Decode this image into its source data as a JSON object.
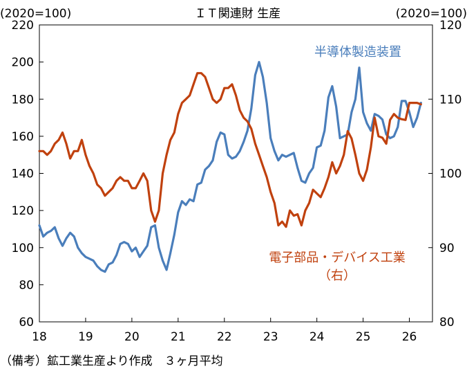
{
  "chart_data": {
    "type": "line",
    "title": "ＩＴ関連財 生産",
    "left_unit": "(2020=100)",
    "right_unit": "(2020=100)",
    "note": "（備考）鉱工業生産より作成　３ヶ月平均",
    "x_axis": {
      "range": [
        18.0,
        26.5
      ],
      "ticks": [
        18,
        19,
        20,
        21,
        22,
        23,
        24,
        25,
        26
      ],
      "tick_labels": [
        "18",
        "19",
        "20",
        "21",
        "22",
        "23",
        "24",
        "25",
        "26"
      ]
    },
    "y_left": {
      "range": [
        60,
        220
      ],
      "ticks": [
        60,
        80,
        100,
        120,
        140,
        160,
        180,
        200,
        220
      ],
      "tick_labels": [
        "60",
        "80",
        "100",
        "120",
        "140",
        "160",
        "180",
        "200",
        "220"
      ]
    },
    "y_right": {
      "range": [
        80,
        120
      ],
      "ticks": [
        80,
        90,
        100,
        110,
        120
      ],
      "tick_labels": [
        "80",
        "90",
        "100",
        "110",
        "120"
      ]
    },
    "grid": false,
    "series": [
      {
        "name": "半導体製造装置",
        "axis": "left",
        "color": "#4a7ebb",
        "x": [
          18.0,
          18.083,
          18.167,
          18.25,
          18.333,
          18.417,
          18.5,
          18.583,
          18.667,
          18.75,
          18.833,
          18.917,
          19.0,
          19.083,
          19.167,
          19.25,
          19.333,
          19.417,
          19.5,
          19.583,
          19.667,
          19.75,
          19.833,
          19.917,
          20.0,
          20.083,
          20.167,
          20.25,
          20.333,
          20.417,
          20.5,
          20.583,
          20.667,
          20.75,
          20.833,
          20.917,
          21.0,
          21.083,
          21.167,
          21.25,
          21.333,
          21.417,
          21.5,
          21.583,
          21.667,
          21.75,
          21.833,
          21.917,
          22.0,
          22.083,
          22.167,
          22.25,
          22.333,
          22.417,
          22.5,
          22.583,
          22.667,
          22.75,
          22.833,
          22.917,
          23.0,
          23.083,
          23.167,
          23.25,
          23.333,
          23.417,
          23.5,
          23.583,
          23.667,
          23.75,
          23.833,
          23.917,
          24.0,
          24.083,
          24.167,
          24.25,
          24.333,
          24.417,
          24.5,
          24.583,
          24.667,
          24.75,
          24.833,
          24.917,
          25.0,
          25.083,
          25.167,
          25.25,
          25.333,
          25.417,
          25.5,
          25.583,
          25.667,
          25.75,
          25.833,
          25.917,
          26.0,
          26.083,
          26.167,
          26.25
        ],
        "values": [
          112,
          106,
          108,
          109,
          111,
          105,
          101,
          105,
          108,
          106,
          100,
          97,
          95,
          94,
          93,
          90,
          88,
          87,
          91,
          92,
          96,
          102,
          103,
          102,
          98,
          100,
          95,
          98,
          101,
          111,
          112,
          100,
          93,
          88,
          97,
          107,
          119,
          125,
          123,
          126,
          125,
          134,
          135,
          142,
          144,
          147,
          157,
          162,
          161,
          150,
          148,
          149,
          152,
          157,
          163,
          175,
          193,
          200,
          192,
          178,
          159,
          152,
          147,
          150,
          149,
          150,
          151,
          143,
          136,
          135,
          140,
          143,
          154,
          155,
          163,
          181,
          187,
          176,
          159,
          160,
          161,
          173,
          180,
          197,
          173,
          167,
          163,
          172,
          171,
          169,
          161,
          159,
          160,
          165,
          179,
          179,
          173,
          165,
          170,
          178
        ]
      },
      {
        "name": "電子部品・デバイス工業",
        "name_sub": "（右）",
        "axis": "right",
        "color": "#c0410e",
        "x": [
          18.0,
          18.083,
          18.167,
          18.25,
          18.333,
          18.417,
          18.5,
          18.583,
          18.667,
          18.75,
          18.833,
          18.917,
          19.0,
          19.083,
          19.167,
          19.25,
          19.333,
          19.417,
          19.5,
          19.583,
          19.667,
          19.75,
          19.833,
          19.917,
          20.0,
          20.083,
          20.167,
          20.25,
          20.333,
          20.417,
          20.5,
          20.583,
          20.667,
          20.75,
          20.833,
          20.917,
          21.0,
          21.083,
          21.167,
          21.25,
          21.333,
          21.417,
          21.5,
          21.583,
          21.667,
          21.75,
          21.833,
          21.917,
          22.0,
          22.083,
          22.167,
          22.25,
          22.333,
          22.417,
          22.5,
          22.583,
          22.667,
          22.75,
          22.833,
          22.917,
          23.0,
          23.083,
          23.167,
          23.25,
          23.333,
          23.417,
          23.5,
          23.583,
          23.667,
          23.75,
          23.833,
          23.917,
          24.0,
          24.083,
          24.167,
          24.25,
          24.333,
          24.417,
          24.5,
          24.583,
          24.667,
          24.75,
          24.833,
          24.917,
          25.0,
          25.083,
          25.167,
          25.25,
          25.333,
          25.417,
          25.5,
          25.583,
          25.667,
          25.75,
          25.833,
          25.917,
          26.0,
          26.083,
          26.167,
          26.25
        ],
        "values": [
          103,
          103,
          102.5,
          103,
          104,
          104.5,
          105.5,
          104,
          102,
          103,
          103,
          104.5,
          102.5,
          101,
          100,
          98.5,
          98,
          97,
          97.5,
          98,
          99,
          99.5,
          99,
          99,
          98,
          98,
          99,
          100,
          99,
          95,
          93.5,
          95,
          100,
          102.5,
          104.5,
          105.5,
          108,
          109.5,
          110,
          110.5,
          112,
          113.5,
          113.5,
          113,
          111.5,
          110,
          109.5,
          110,
          111.5,
          111.5,
          112,
          110.5,
          108.5,
          107.5,
          107,
          106,
          104,
          102.5,
          101,
          99.5,
          97.5,
          96,
          93,
          93.5,
          92.8,
          95,
          94.3,
          94.5,
          93,
          95,
          96,
          97.8,
          97.3,
          96.8,
          98,
          99.5,
          101.5,
          100,
          101,
          102.5,
          105.7,
          104.7,
          102.5,
          100,
          99,
          100.5,
          103.5,
          107.5,
          105,
          104.8,
          104,
          107.2,
          108,
          107.5,
          107.3,
          107.2,
          109.5,
          109.5,
          109.5,
          109.3
        ]
      }
    ]
  }
}
